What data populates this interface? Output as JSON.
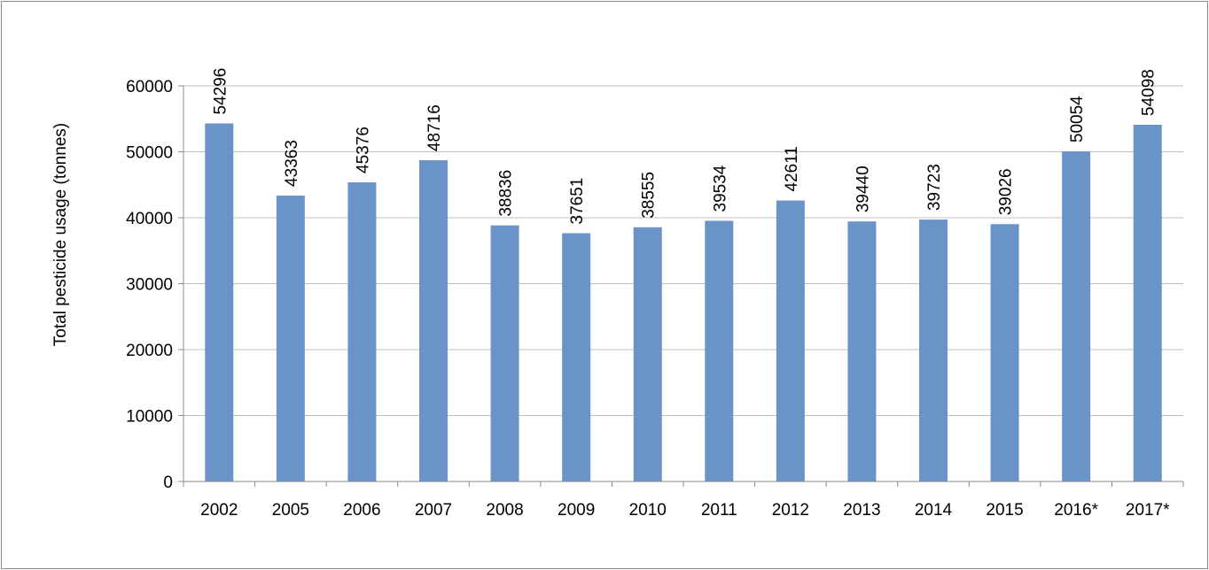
{
  "chart_data": {
    "type": "bar",
    "title": "",
    "xlabel": "",
    "ylabel": "Total pesticide usage  (tonnes)",
    "ylim": [
      0,
      60000
    ],
    "yticks": [
      0,
      10000,
      20000,
      30000,
      40000,
      50000,
      60000
    ],
    "grid": true,
    "legend": "none",
    "bar_color": "#6a93c8",
    "categories": [
      "2002",
      "2005",
      "2006",
      "2007",
      "2008",
      "2009",
      "2010",
      "2011",
      "2012",
      "2013",
      "2014",
      "2015",
      "2016*",
      "2017*"
    ],
    "values": [
      54296,
      43363,
      45376,
      48716,
      38836,
      37651,
      38555,
      39534,
      42611,
      39440,
      39723,
      39026,
      50054,
      54098
    ],
    "data_labels": [
      "54296",
      "43363",
      "45376",
      "48716",
      "38836",
      "37651",
      "38555",
      "39534",
      "42611",
      "39440",
      "39723",
      "39026",
      "50054",
      "54098"
    ]
  }
}
